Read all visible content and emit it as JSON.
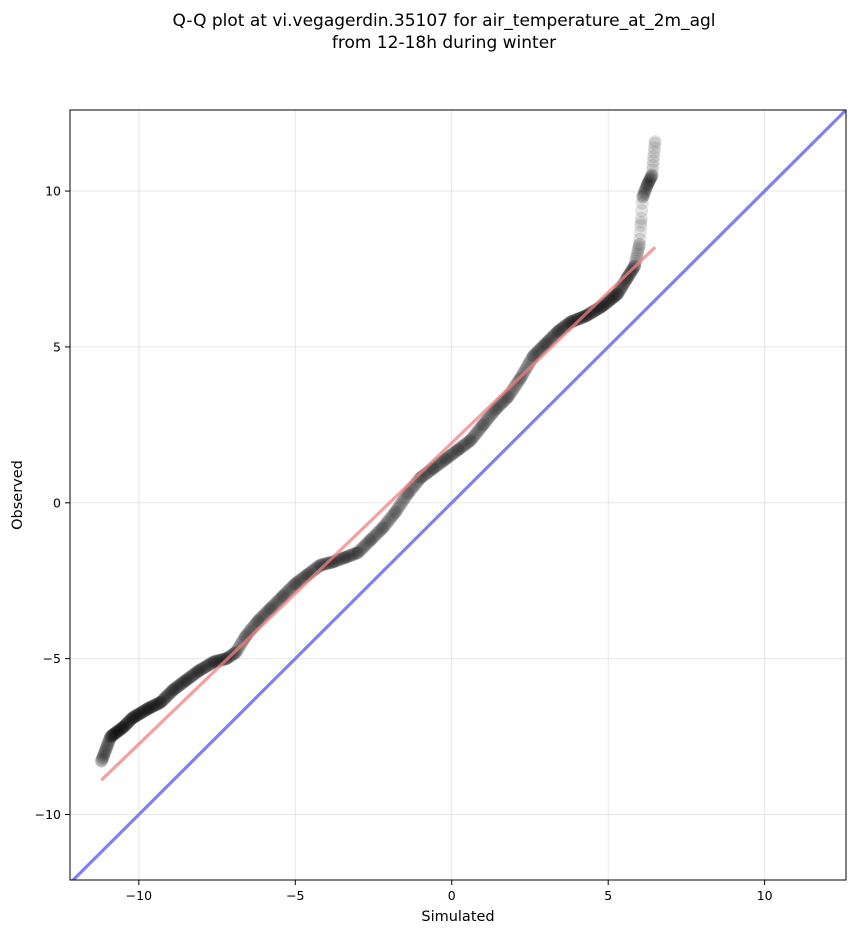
{
  "chart_data": {
    "type": "scatter",
    "title_lines": [
      "Q-Q plot at vi.vegagerdin.35107 for air_temperature_at_2m_agl",
      "from 12-18h during winter"
    ],
    "xlabel": "Simulated",
    "ylabel": "Observed",
    "xlim": [
      -12.2,
      12.6
    ],
    "ylim": [
      -12.1,
      12.6
    ],
    "xticks": [
      -10,
      -5,
      0,
      5,
      10
    ],
    "yticks": [
      -10,
      -5,
      0,
      5,
      10
    ],
    "tick_labels_x": [
      "−10",
      "−5",
      "0",
      "5",
      "10"
    ],
    "tick_labels_y": [
      "−10",
      "−5",
      "0",
      "5",
      "10"
    ],
    "grid": true,
    "colors": {
      "points": "#000000",
      "fit_line": "#f08080",
      "identity_line": "#8080f0"
    },
    "identity_line": {
      "x": [
        -12.2,
        12.6
      ],
      "y": [
        -12.2,
        12.6
      ]
    },
    "fit_line": {
      "x": [
        -11.2,
        6.5
      ],
      "y": [
        -8.9,
        8.2
      ]
    },
    "quantile_knots": [
      [
        -11.2,
        -8.3
      ],
      [
        -10.9,
        -7.5
      ],
      [
        -10.5,
        -7.2
      ],
      [
        -10.2,
        -6.9
      ],
      [
        -9.7,
        -6.6
      ],
      [
        -9.3,
        -6.4
      ],
      [
        -8.9,
        -6.0
      ],
      [
        -8.5,
        -5.7
      ],
      [
        -8.1,
        -5.4
      ],
      [
        -7.6,
        -5.1
      ],
      [
        -7.2,
        -5.0
      ],
      [
        -6.9,
        -4.8
      ],
      [
        -6.6,
        -4.3
      ],
      [
        -6.2,
        -3.8
      ],
      [
        -5.8,
        -3.4
      ],
      [
        -5.4,
        -3.0
      ],
      [
        -5.0,
        -2.6
      ],
      [
        -4.6,
        -2.3
      ],
      [
        -4.2,
        -2.0
      ],
      [
        -3.8,
        -1.9
      ],
      [
        -3.4,
        -1.75
      ],
      [
        -3.0,
        -1.6
      ],
      [
        -2.6,
        -1.2
      ],
      [
        -2.2,
        -0.8
      ],
      [
        -1.8,
        -0.3
      ],
      [
        -1.4,
        0.3
      ],
      [
        -1.0,
        0.8
      ],
      [
        -0.6,
        1.1
      ],
      [
        -0.2,
        1.4
      ],
      [
        0.2,
        1.7
      ],
      [
        0.6,
        2.0
      ],
      [
        1.0,
        2.5
      ],
      [
        1.4,
        3.0
      ],
      [
        1.8,
        3.4
      ],
      [
        2.2,
        4.0
      ],
      [
        2.6,
        4.7
      ],
      [
        3.0,
        5.1
      ],
      [
        3.4,
        5.5
      ],
      [
        3.8,
        5.8
      ],
      [
        4.3,
        6.0
      ],
      [
        4.8,
        6.3
      ],
      [
        5.3,
        6.7
      ],
      [
        5.6,
        7.2
      ],
      [
        5.85,
        7.6
      ],
      [
        6.0,
        8.3
      ],
      [
        6.05,
        9.0
      ],
      [
        6.1,
        9.8
      ],
      [
        6.25,
        10.2
      ],
      [
        6.4,
        10.5
      ],
      [
        6.5,
        11.6
      ]
    ],
    "n_points": 700
  }
}
